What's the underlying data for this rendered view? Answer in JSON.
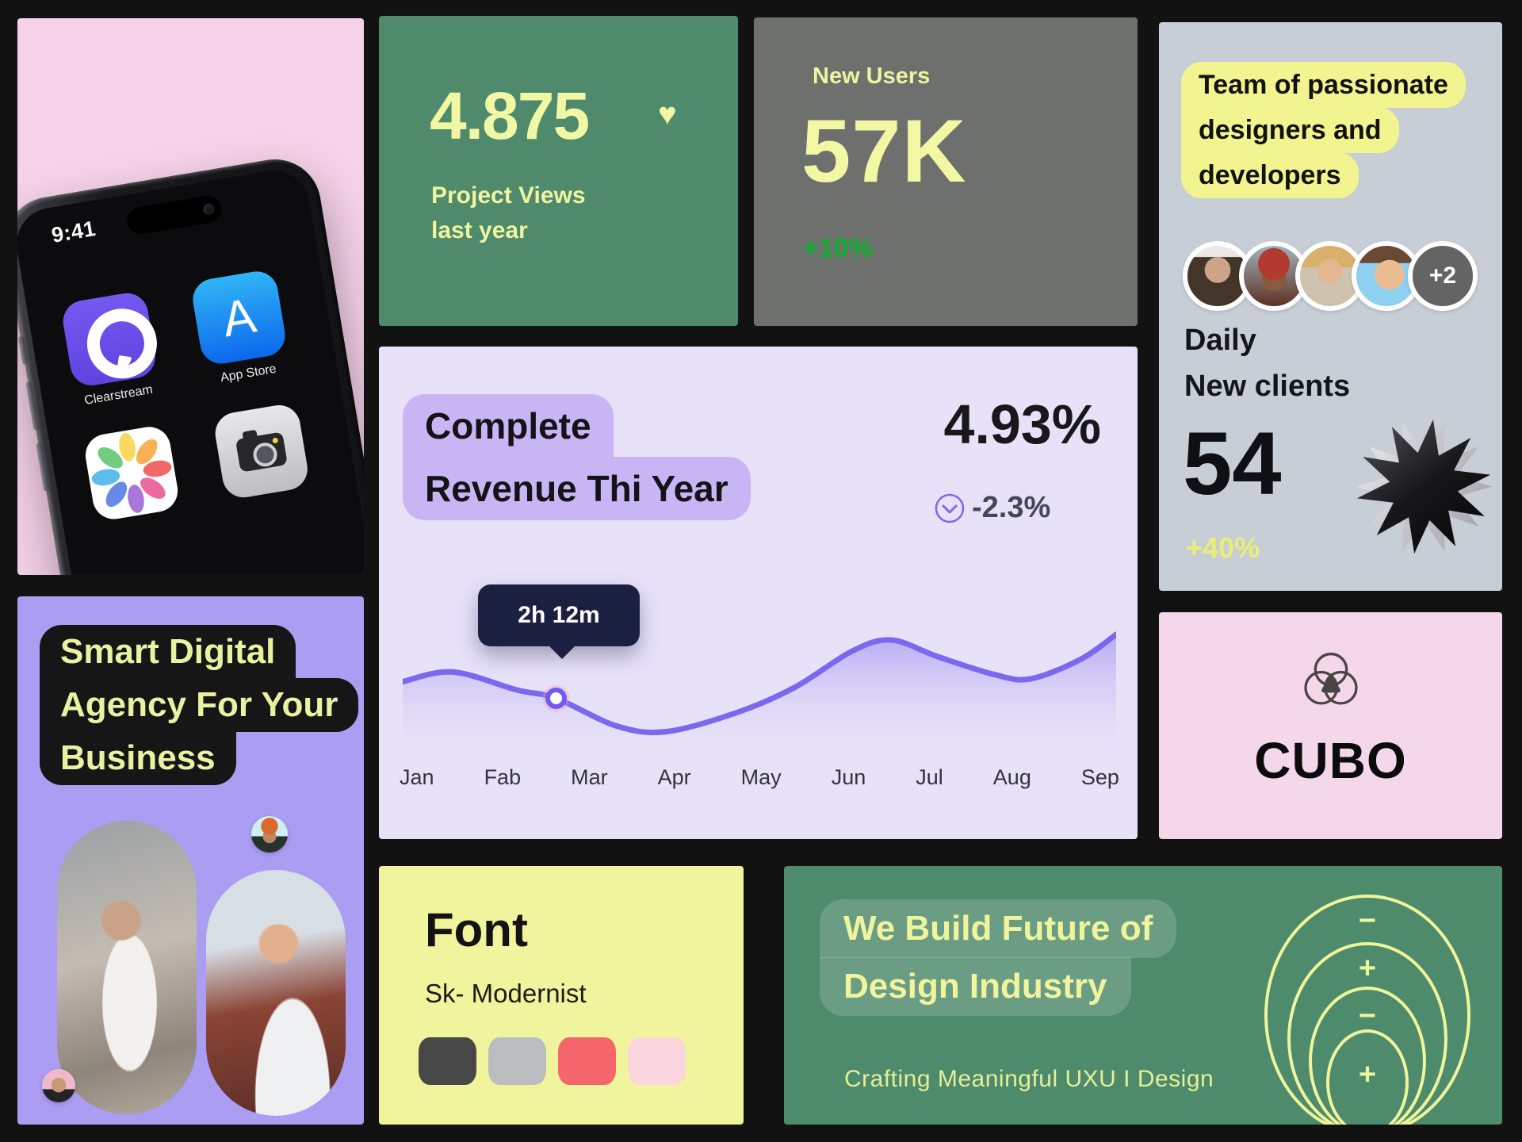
{
  "palette": {
    "background": "#121212",
    "pink_card": "#f5d2e7",
    "green_card": "#4e8a6b",
    "gray_card": "#6d706c",
    "light_gray_card": "#c8ced6",
    "lavender_card": "#e7e2f8",
    "purple_card": "#aa9df2",
    "cubo_pink_card": "#f4d7e9",
    "yellow_card": "#f0f49c",
    "accent_yellow": "#f2f7a4",
    "accent_green": "#0db12c",
    "accent_purple": "#7b68ee",
    "bubble_yellow": "#f2f58f",
    "bubble_purple": "#c8b6f4",
    "tooltip_navy": "#1c2040"
  },
  "phone_card": {
    "time": "9:41",
    "app_labels": [
      "Clearstream",
      "App Store"
    ]
  },
  "views_card": {
    "value": "4.875",
    "label_line1": "Project Views",
    "label_line2": "last year",
    "heart_icon": "heart"
  },
  "users_card": {
    "title": "New Users",
    "value": "57K",
    "delta": "+10%"
  },
  "team_card": {
    "headline_lines": [
      "Team of passionate",
      "designers and",
      "developers"
    ],
    "avatars": [
      "woman-dark-hair",
      "man-red-headwrap",
      "woman-blonde",
      "illustrated-man"
    ],
    "more_label": "+2",
    "subtitle_line1": "Daily",
    "subtitle_line2": "New clients",
    "value": "54",
    "delta": "+40%"
  },
  "revenue_card": {
    "title_line1": "Complete",
    "title_line2": "Revenue Thi Year",
    "value": "4.93%",
    "delta": "-2.3%",
    "tooltip": "2h 12m",
    "months": [
      "Jan",
      "Fab",
      "Mar",
      "Apr",
      "May",
      "Jun",
      "Jul",
      "Aug",
      "Sep"
    ]
  },
  "chart_data": {
    "type": "area",
    "title": "Complete Revenue Thi Year",
    "x_labels": [
      "Jan",
      "Fab",
      "Mar",
      "Apr",
      "May",
      "Jun",
      "Jul",
      "Aug",
      "Sep"
    ],
    "series": [
      {
        "name": "revenue",
        "points": [
          {
            "x": 0.0,
            "v": 50
          },
          {
            "x": 0.07,
            "v": 57
          },
          {
            "x": 0.16,
            "v": 44
          },
          {
            "x": 0.215,
            "v": 38
          },
          {
            "x": 0.3,
            "v": 18
          },
          {
            "x": 0.37,
            "v": 14
          },
          {
            "x": 0.47,
            "v": 28
          },
          {
            "x": 0.55,
            "v": 46
          },
          {
            "x": 0.63,
            "v": 72
          },
          {
            "x": 0.685,
            "v": 80
          },
          {
            "x": 0.75,
            "v": 68
          },
          {
            "x": 0.83,
            "v": 55
          },
          {
            "x": 0.88,
            "v": 52
          },
          {
            "x": 0.95,
            "v": 66
          },
          {
            "x": 1.0,
            "v": 84
          }
        ]
      }
    ],
    "marker": {
      "x": 0.215,
      "v": 38,
      "label": "2h 12m"
    },
    "line_color": "#7b68ee",
    "grid": false,
    "legend": false
  },
  "agency_card": {
    "headline_lines": [
      "Smart Digital",
      "Agency For Your",
      "Business"
    ]
  },
  "cubo_card": {
    "brand": "CUBO"
  },
  "font_card": {
    "title": "Font",
    "subtitle": "Sk- Modernist",
    "swatches": [
      "#474747",
      "#babec1",
      "#f5666c",
      "#fcd6df"
    ]
  },
  "build_card": {
    "headline_line1": "We Build Future of",
    "headline_line2": "Design Industry",
    "subtitle": "Crafting Meaningful UXU I Design",
    "ring_symbols": [
      "−",
      "+",
      "−",
      "+"
    ]
  }
}
